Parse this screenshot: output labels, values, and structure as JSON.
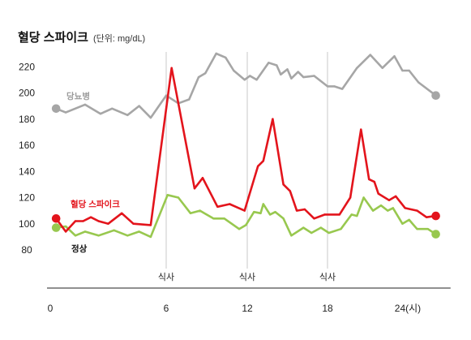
{
  "chart_data": {
    "type": "line",
    "title": "혈당 스파이크",
    "subtitle": "(단위: mg/dL)",
    "xlabel": "",
    "ylabel": "",
    "x_ticks": [
      {
        "value": 0,
        "label": "0"
      },
      {
        "value": 6,
        "label": "6"
      },
      {
        "value": 12,
        "label": "12"
      },
      {
        "value": 18,
        "label": "18"
      },
      {
        "value": 24,
        "label": "24(시)"
      }
    ],
    "y_ticks": [
      220,
      200,
      180,
      160,
      140,
      120,
      100,
      80
    ],
    "xlim": [
      0,
      27.2
    ],
    "ylim": [
      50,
      240
    ],
    "grid": false,
    "legend": "inline",
    "annotations": [
      {
        "x": 6,
        "label": "식사"
      },
      {
        "x": 12,
        "label": "식사"
      },
      {
        "x": 18,
        "label": "식사"
      }
    ],
    "series": [
      {
        "name": "당뇨병",
        "color": "#a6a6a6",
        "label_color": "#9b9b9b",
        "points": [
          [
            0.3,
            188
          ],
          [
            0.8,
            185
          ],
          [
            1.8,
            191
          ],
          [
            2.6,
            184
          ],
          [
            3.2,
            188
          ],
          [
            4.0,
            183
          ],
          [
            4.6,
            190
          ],
          [
            5.2,
            181
          ],
          [
            6.0,
            198
          ],
          [
            6.9,
            192
          ],
          [
            7.7,
            195
          ],
          [
            8.4,
            212
          ],
          [
            8.9,
            215
          ],
          [
            9.7,
            230
          ],
          [
            10.4,
            227
          ],
          [
            11.0,
            217
          ],
          [
            11.8,
            210
          ],
          [
            12.2,
            213
          ],
          [
            12.7,
            210
          ],
          [
            13.6,
            223
          ],
          [
            14.2,
            221
          ],
          [
            14.5,
            214
          ],
          [
            15.0,
            218
          ],
          [
            15.3,
            211
          ],
          [
            15.8,
            216
          ],
          [
            16.2,
            212
          ],
          [
            17.0,
            213
          ],
          [
            18.0,
            205
          ],
          [
            18.5,
            205
          ],
          [
            19.1,
            203
          ],
          [
            20.2,
            219
          ],
          [
            21.2,
            229
          ],
          [
            22.1,
            219
          ],
          [
            23.0,
            228
          ],
          [
            23.6,
            217
          ],
          [
            24.1,
            217
          ],
          [
            24.8,
            208
          ],
          [
            26.1,
            198
          ]
        ]
      },
      {
        "name": "혈당 스파이크",
        "color": "#e3141c",
        "label_color": "#e3141c",
        "points": [
          [
            0.3,
            104
          ],
          [
            0.8,
            94
          ],
          [
            1.3,
            102
          ],
          [
            1.7,
            102
          ],
          [
            2.1,
            105
          ],
          [
            2.5,
            102
          ],
          [
            3.0,
            100
          ],
          [
            3.7,
            108
          ],
          [
            4.3,
            100
          ],
          [
            5.2,
            99
          ],
          [
            6.4,
            219
          ],
          [
            8.1,
            127
          ],
          [
            8.7,
            135
          ],
          [
            9.8,
            113
          ],
          [
            10.7,
            115
          ],
          [
            11.8,
            110
          ],
          [
            12.8,
            144
          ],
          [
            13.2,
            148
          ],
          [
            13.9,
            180
          ],
          [
            14.7,
            130
          ],
          [
            15.2,
            125
          ],
          [
            15.7,
            110
          ],
          [
            16.3,
            111
          ],
          [
            17.0,
            104
          ],
          [
            17.8,
            107
          ],
          [
            18.9,
            107
          ],
          [
            19.7,
            120
          ],
          [
            20.5,
            172
          ],
          [
            21.1,
            134
          ],
          [
            21.5,
            132
          ],
          [
            21.8,
            123
          ],
          [
            22.6,
            118
          ],
          [
            23.1,
            121
          ],
          [
            23.8,
            112
          ],
          [
            24.7,
            110
          ],
          [
            25.4,
            105
          ],
          [
            26.1,
            106
          ]
        ]
      },
      {
        "name": "정상",
        "color": "#98c84f",
        "label_color": "#111111",
        "points": [
          [
            0.3,
            97
          ],
          [
            0.8,
            98
          ],
          [
            1.3,
            91
          ],
          [
            1.8,
            94
          ],
          [
            2.5,
            91
          ],
          [
            3.3,
            95
          ],
          [
            4.0,
            91
          ],
          [
            4.6,
            94
          ],
          [
            5.2,
            90
          ],
          [
            6.1,
            122
          ],
          [
            6.9,
            120
          ],
          [
            7.8,
            108
          ],
          [
            8.5,
            110
          ],
          [
            9.5,
            104
          ],
          [
            10.3,
            104
          ],
          [
            11.4,
            96
          ],
          [
            11.9,
            99
          ],
          [
            12.5,
            109
          ],
          [
            13.0,
            108
          ],
          [
            13.2,
            115
          ],
          [
            13.7,
            107
          ],
          [
            14.1,
            109
          ],
          [
            14.7,
            104
          ],
          [
            15.3,
            91
          ],
          [
            16.2,
            97
          ],
          [
            16.8,
            93
          ],
          [
            17.5,
            97
          ],
          [
            18.1,
            93
          ],
          [
            19.0,
            96
          ],
          [
            19.8,
            107
          ],
          [
            20.2,
            106
          ],
          [
            20.7,
            120
          ],
          [
            21.4,
            110
          ],
          [
            22.0,
            114
          ],
          [
            22.5,
            110
          ],
          [
            22.9,
            112
          ],
          [
            23.6,
            100
          ],
          [
            24.1,
            103
          ],
          [
            24.7,
            96
          ],
          [
            25.5,
            96
          ],
          [
            26.1,
            92
          ]
        ]
      }
    ]
  }
}
